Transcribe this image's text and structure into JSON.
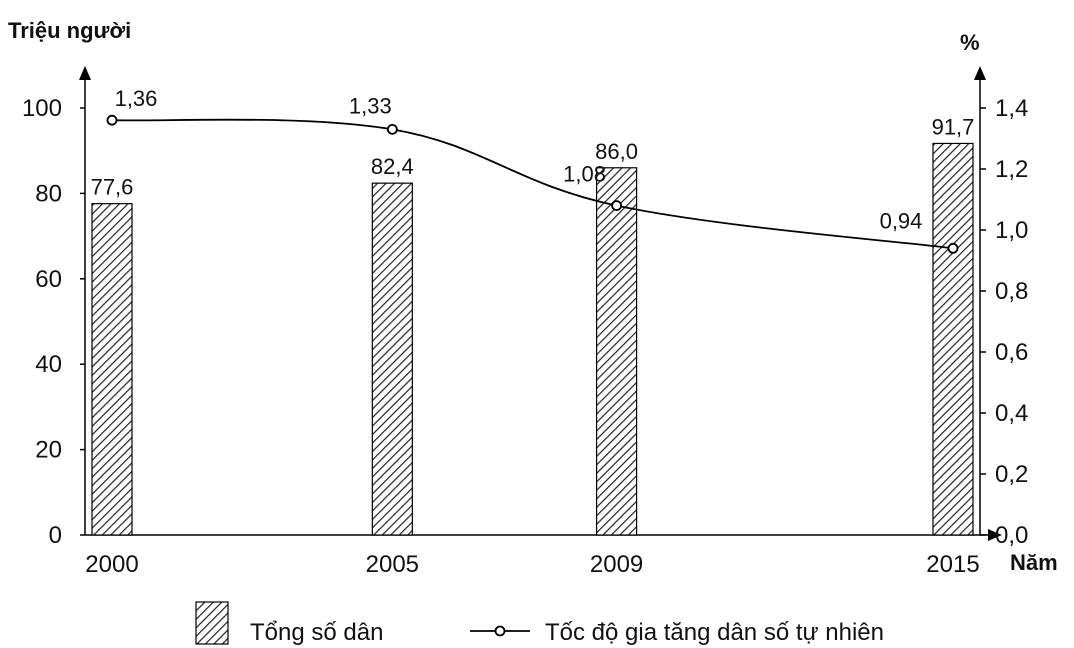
{
  "chart_data": {
    "type": "bar+line",
    "categories": [
      "2000",
      "2005",
      "2009",
      "2015"
    ],
    "series": [
      {
        "name": "Tổng số dân",
        "type": "bar",
        "axis": "left",
        "values": [
          77.6,
          82.4,
          86.0,
          91.7
        ],
        "labels": [
          "77,6",
          "82,4",
          "86,0",
          "91,7"
        ]
      },
      {
        "name": "Tốc độ gia tăng dân số tự nhiên",
        "type": "line",
        "axis": "right",
        "values": [
          1.36,
          1.33,
          1.08,
          0.94
        ],
        "labels": [
          "1,36",
          "1,33",
          "1,08",
          "0,94"
        ]
      }
    ],
    "y_left": {
      "label": "Triệu người",
      "ylim": [
        0,
        100
      ],
      "ticks": [
        0,
        20,
        40,
        60,
        80,
        100
      ],
      "tick_labels": [
        "0",
        "20",
        "40",
        "60",
        "80",
        "100"
      ]
    },
    "y_right": {
      "label": "%",
      "ylim": [
        0,
        1.4
      ],
      "ticks": [
        0,
        0.2,
        0.4,
        0.6,
        0.8,
        1.0,
        1.2,
        1.4
      ],
      "tick_labels": [
        "0,0",
        "0,2",
        "0,4",
        "0,6",
        "0,8",
        "1,0",
        "1,2",
        "1,4"
      ]
    },
    "x": {
      "label": "Năm",
      "scale": "linear-years",
      "range": [
        2000,
        2015
      ]
    },
    "grid": false,
    "legend_position": "bottom",
    "bar_pattern": "diagonal-hatch",
    "line_marker": "open-circle"
  }
}
